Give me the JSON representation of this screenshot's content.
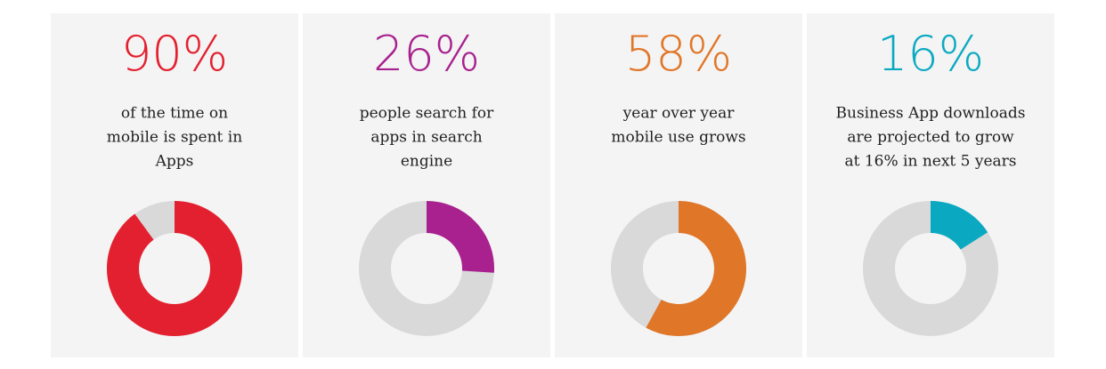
{
  "chart_data": [
    {
      "type": "donut",
      "values": [
        90
      ],
      "value_labels": [
        "90%"
      ],
      "caption": [
        "of the time on",
        "mobile is spent in",
        "Apps"
      ],
      "color": "#e3202f"
    },
    {
      "type": "donut",
      "values": [
        26
      ],
      "value_labels": [
        "26%"
      ],
      "caption": [
        "people search for",
        "apps in search",
        "engine"
      ],
      "color": "#a8218e"
    },
    {
      "type": "donut",
      "values": [
        58
      ],
      "value_labels": [
        "58%"
      ],
      "caption": [
        "year over year",
        "mobile use grows"
      ],
      "color": "#e07628"
    },
    {
      "type": "donut",
      "values": [
        16
      ],
      "value_labels": [
        "16%"
      ],
      "caption": [
        "Business App downloads",
        "are projected to grow",
        "at 16% in next 5 years"
      ],
      "color": "#0ba9c1"
    }
  ]
}
